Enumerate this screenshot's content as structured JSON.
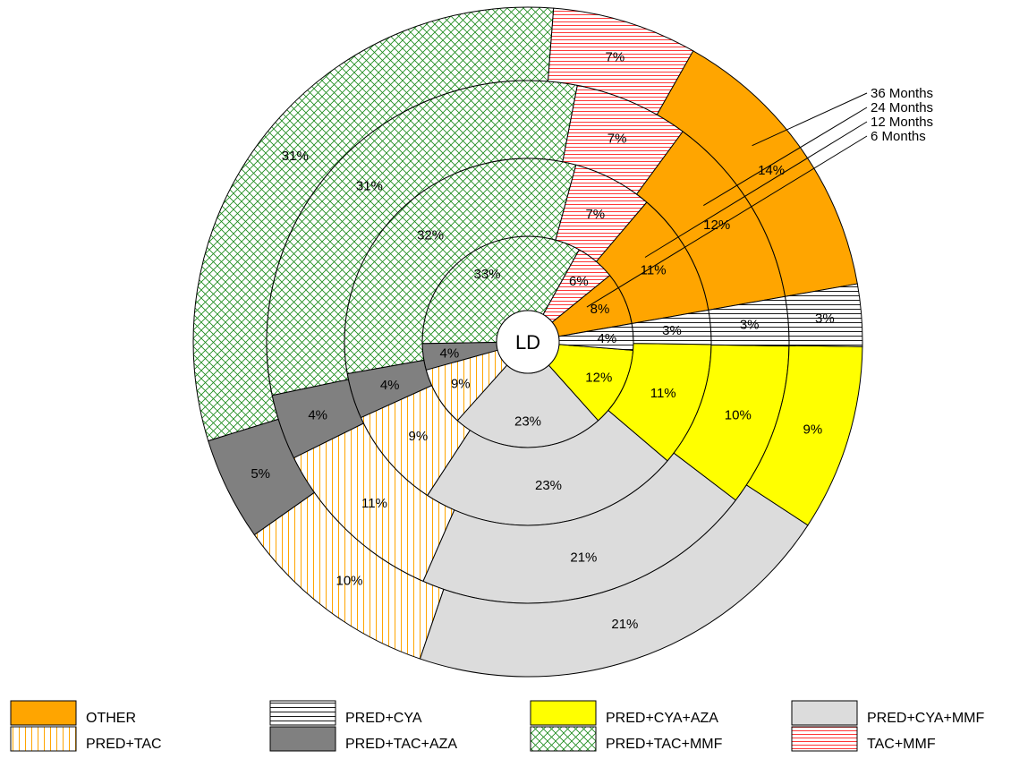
{
  "chart_data": {
    "type": "pie",
    "subtype": "concentric-rings",
    "center_label": "LD",
    "categories": [
      "OTHER",
      "TAC+MMF",
      "PRED+TAC+MMF",
      "PRED+TAC+AZA",
      "PRED+TAC",
      "PRED+CYA+MMF",
      "PRED+CYA+AZA",
      "PRED+CYA"
    ],
    "series": [
      {
        "name": "6 Months",
        "values": [
          8,
          6,
          33,
          4,
          9,
          23,
          12,
          4
        ],
        "labels": [
          "8%",
          "6%",
          "33%",
          "4%",
          "9%",
          "23%",
          "12%",
          "4%"
        ]
      },
      {
        "name": "12 Months",
        "values": [
          11,
          7,
          32,
          4,
          9,
          23,
          11,
          3
        ],
        "labels": [
          "11%",
          "7%",
          "32%",
          "4%",
          "9%",
          "23%",
          "11%",
          "3%"
        ]
      },
      {
        "name": "24 Months",
        "values": [
          12,
          7,
          31,
          4,
          11,
          21,
          10,
          3
        ],
        "labels": [
          "12%",
          "7%",
          "31%",
          "4%",
          "11%",
          "21%",
          "10%",
          "3%"
        ]
      },
      {
        "name": "36 Months",
        "values": [
          14,
          7,
          31,
          5,
          10,
          21,
          9,
          3
        ],
        "labels": [
          "14%",
          "7%",
          "31%",
          "5%",
          "10%",
          "21%",
          "9%",
          "3%"
        ]
      }
    ],
    "ring_labels": [
      "36 Months",
      "24 Months",
      "12 Months",
      "6 Months"
    ],
    "legend": {
      "placement": "bottom",
      "items": [
        {
          "label": "OTHER",
          "color": "#FFA500",
          "pattern": "solid"
        },
        {
          "label": "PRED+CYA",
          "color": "#000000",
          "pattern": "horizontal-lines"
        },
        {
          "label": "PRED+CYA+AZA",
          "color": "#FFFF00",
          "pattern": "solid"
        },
        {
          "label": "PRED+CYA+MMF",
          "color": "#DCDCDC",
          "pattern": "solid"
        },
        {
          "label": "PRED+TAC",
          "color": "#FFA500",
          "pattern": "vertical-lines"
        },
        {
          "label": "PRED+TAC+AZA",
          "color": "#808080",
          "pattern": "solid"
        },
        {
          "label": "PRED+TAC+MMF",
          "color": "#008000",
          "pattern": "crosshatch"
        },
        {
          "label": "TAC+MMF",
          "color": "#FF0000",
          "pattern": "horizontal-lines"
        }
      ]
    }
  }
}
